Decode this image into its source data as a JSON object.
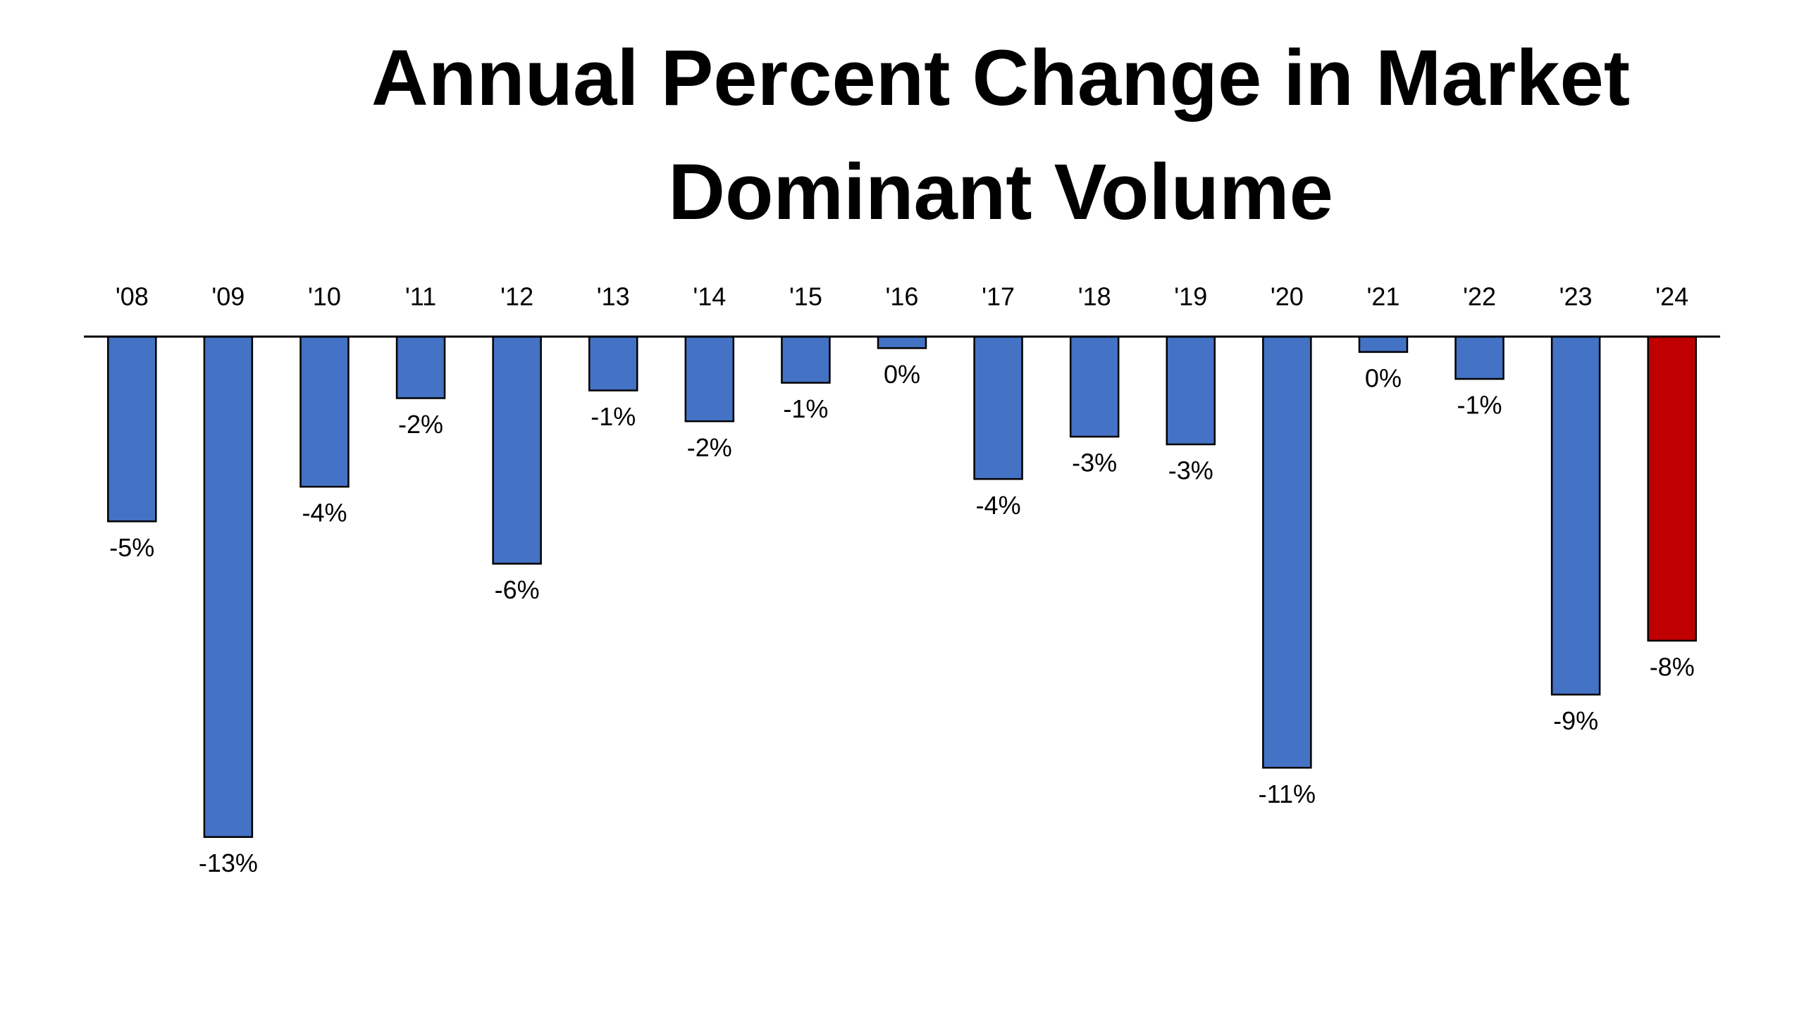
{
  "chart_data": {
    "type": "bar",
    "title": "Annual Percent Change in Market Dominant Volume",
    "categories": [
      "'08",
      "'09",
      "'10",
      "'11",
      "'12",
      "'13",
      "'14",
      "'15",
      "'16",
      "'17",
      "'18",
      "'19",
      "'20",
      "'21",
      "'22",
      "'23",
      "'24"
    ],
    "values": [
      -4.8,
      -13.0,
      -3.9,
      -1.6,
      -5.9,
      -1.4,
      -2.2,
      -1.2,
      -0.3,
      -3.7,
      -2.6,
      -2.8,
      -11.2,
      -0.4,
      -1.1,
      -9.3,
      -7.9
    ],
    "value_labels": [
      "-5%",
      "-13%",
      "-4%",
      "-2%",
      "-6%",
      "-1%",
      "-2%",
      "-1%",
      "0%",
      "-4%",
      "-3%",
      "-3%",
      "-11%",
      "0%",
      "-1%",
      "-9%",
      "-8%"
    ],
    "colors": [
      "#4472c4",
      "#4472c4",
      "#4472c4",
      "#4472c4",
      "#4472c4",
      "#4472c4",
      "#4472c4",
      "#4472c4",
      "#4472c4",
      "#4472c4",
      "#4472c4",
      "#4472c4",
      "#4472c4",
      "#4472c4",
      "#4472c4",
      "#4472c4",
      "#c00000"
    ],
    "ylim": [
      -15,
      0
    ]
  }
}
